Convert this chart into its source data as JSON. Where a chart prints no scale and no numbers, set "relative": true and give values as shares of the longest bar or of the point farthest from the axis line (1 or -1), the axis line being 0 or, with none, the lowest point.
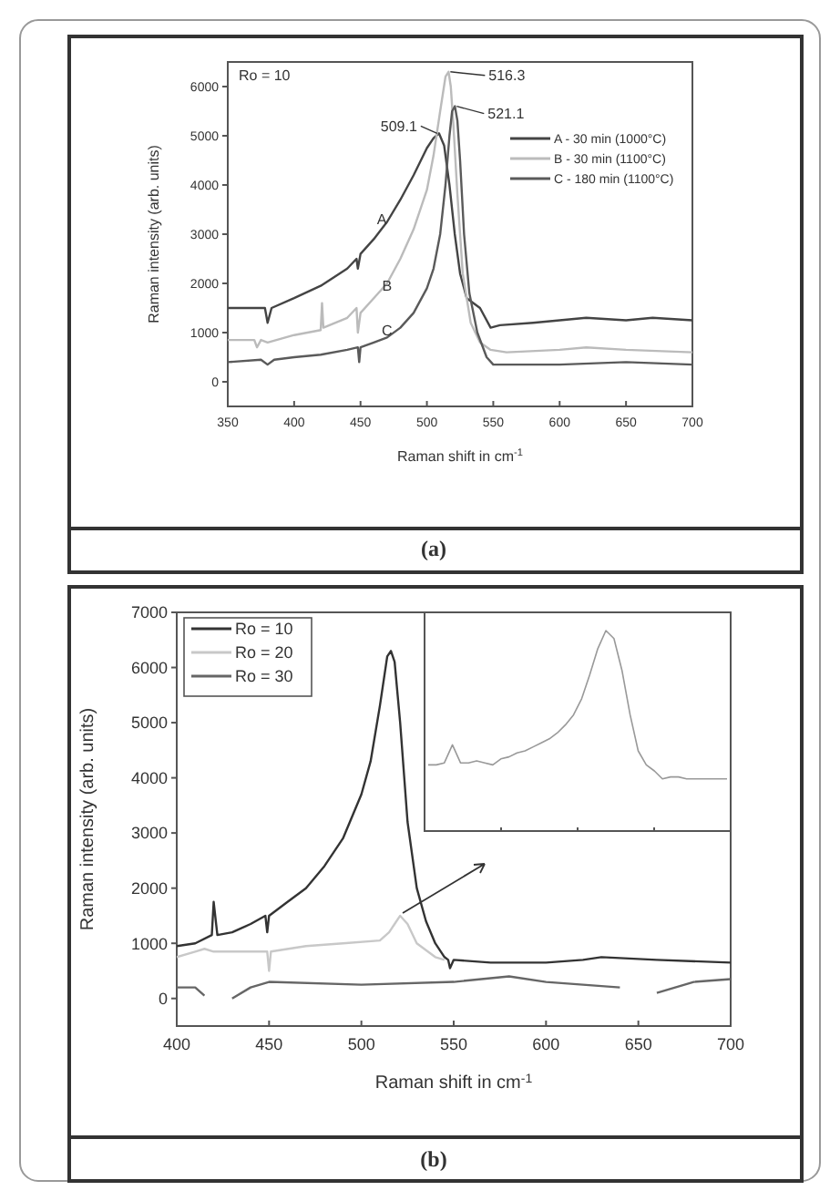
{
  "chart_data": [
    {
      "type": "line",
      "xlabel": "Raman shift in cm$^{-1}$",
      "ylabel": "Raman intensity (arb. units)",
      "xlim": [
        350,
        700
      ],
      "ylim": [
        -500,
        6500
      ],
      "xticks": [
        350,
        400,
        450,
        500,
        550,
        600,
        650,
        700
      ],
      "yticks": [
        0,
        1000,
        2000,
        3000,
        4000,
        5000,
        6000
      ],
      "legend": "top right",
      "annotations": [
        "Ro = 10",
        "(a)",
        {
          "text": "509.1",
          "x": 509.1,
          "y": 5050
        },
        {
          "text": "516.3",
          "x": 516.3,
          "y": 6300
        },
        {
          "text": "521.1",
          "x": 521.1,
          "y": 5600
        },
        {
          "text": "A",
          "x": 466,
          "y": 3300
        },
        {
          "text": "B",
          "x": 470,
          "y": 1950
        },
        {
          "text": "C",
          "x": 470,
          "y": 1050
        }
      ],
      "series": [
        {
          "name": "A - 30 min  (1000°C)",
          "color": "#444444",
          "x": [
            350,
            375,
            378,
            380,
            383,
            400,
            420,
            440,
            447,
            448,
            450,
            460,
            470,
            480,
            490,
            500,
            505,
            509.1,
            513,
            517,
            521,
            525,
            530,
            540,
            548,
            555,
            580,
            600,
            620,
            650,
            670,
            700
          ],
          "values": [
            1500,
            1500,
            1500,
            1200,
            1500,
            1700,
            1950,
            2300,
            2500,
            2300,
            2600,
            2900,
            3250,
            3700,
            4200,
            4750,
            4950,
            5050,
            4800,
            4000,
            3000,
            2200,
            1700,
            1500,
            1100,
            1150,
            1200,
            1250,
            1300,
            1250,
            1300,
            1250
          ]
        },
        {
          "name": "B - 30 min  (1100°C)",
          "color": "#bbbbbb",
          "x": [
            350,
            370,
            372,
            375,
            380,
            400,
            420,
            421,
            422,
            440,
            447,
            448,
            450,
            460,
            470,
            480,
            490,
            500,
            505,
            510,
            514,
            516.3,
            518,
            520,
            523,
            527,
            533,
            540,
            548,
            560,
            600,
            620,
            650,
            700
          ],
          "values": [
            850,
            850,
            700,
            850,
            800,
            950,
            1050,
            1600,
            1100,
            1300,
            1500,
            1000,
            1400,
            1700,
            2000,
            2500,
            3100,
            3900,
            4600,
            5500,
            6200,
            6300,
            6000,
            5200,
            3800,
            2200,
            1200,
            800,
            650,
            600,
            650,
            700,
            650,
            600
          ]
        },
        {
          "name": "C - 180 min (1100°C)",
          "color": "#5a5a5a",
          "x": [
            350,
            375,
            380,
            385,
            400,
            420,
            440,
            448,
            449,
            450,
            460,
            470,
            480,
            490,
            500,
            505,
            510,
            514,
            517,
            519,
            521.1,
            523,
            525,
            528,
            532,
            538,
            545,
            550,
            600,
            650,
            700
          ],
          "values": [
            400,
            450,
            350,
            450,
            500,
            550,
            650,
            700,
            400,
            700,
            800,
            900,
            1100,
            1400,
            1900,
            2300,
            3000,
            4000,
            5000,
            5500,
            5600,
            5300,
            4500,
            3000,
            1800,
            1000,
            500,
            350,
            350,
            400,
            350
          ]
        }
      ]
    },
    {
      "type": "line",
      "xlabel": "Raman shift in cm$^{-1}$",
      "ylabel": "Raman intensity (arb. units)",
      "xlim": [
        400,
        700
      ],
      "ylim": [
        -500,
        7000
      ],
      "xticks": [
        400,
        450,
        500,
        550,
        600,
        650,
        700
      ],
      "yticks": [
        0,
        1000,
        2000,
        3000,
        4000,
        5000,
        6000,
        7000
      ],
      "legend": "top left",
      "annotations": [
        "(b)"
      ],
      "series": [
        {
          "name": "Ro = 10",
          "color": "#333333",
          "x": [
            400,
            410,
            419,
            420,
            422,
            430,
            440,
            448,
            449,
            450,
            460,
            470,
            480,
            490,
            500,
            505,
            510,
            514,
            516,
            518,
            521,
            525,
            530,
            535,
            540,
            545,
            547,
            548,
            550,
            570,
            600,
            620,
            630,
            660,
            700
          ],
          "values": [
            950,
            1000,
            1150,
            1750,
            1150,
            1200,
            1350,
            1500,
            1200,
            1500,
            1750,
            2000,
            2400,
            2900,
            3700,
            4300,
            5300,
            6200,
            6300,
            6100,
            5000,
            3200,
            2000,
            1400,
            1000,
            750,
            700,
            550,
            700,
            650,
            650,
            700,
            750,
            700,
            650
          ]
        },
        {
          "name": "Ro = 20",
          "color": "#c8c8c8",
          "x": [
            400,
            410,
            415,
            420,
            440,
            449,
            450,
            451,
            470,
            490,
            510,
            515,
            518,
            521,
            525,
            530,
            540,
            545
          ],
          "values": [
            750,
            850,
            900,
            850,
            850,
            850,
            500,
            850,
            950,
            1000,
            1050,
            1200,
            1350,
            1500,
            1350,
            1000,
            750,
            700
          ]
        },
        {
          "name": "Ro = 30",
          "color": "#666666",
          "x": [
            400,
            410,
            415,
            418,
            427,
            430,
            440,
            450,
            500,
            550,
            580,
            600,
            640,
            645,
            655,
            660,
            680,
            700
          ],
          "values": [
            200,
            200,
            50,
            null,
            null,
            0,
            200,
            300,
            250,
            300,
            400,
            300,
            200,
            null,
            null,
            100,
            300,
            350
          ]
        }
      ]
    },
    {
      "type": "line",
      "relative": true,
      "categories": [
        null,
        null,
        null,
        null,
        null,
        null,
        null,
        null,
        null,
        null,
        null,
        null,
        null,
        null,
        null,
        null,
        null,
        null,
        null,
        null,
        null,
        null,
        null,
        null,
        null,
        null,
        null,
        null,
        null,
        null,
        null,
        null,
        null,
        null,
        null,
        null,
        null,
        null
      ],
      "series": [
        {
          "color": "#999999",
          "values": [
            0.33,
            0.33,
            0.34,
            0.43,
            0.34,
            0.34,
            0.35,
            0.34,
            0.33,
            0.36,
            0.37,
            0.39,
            0.4,
            0.42,
            0.44,
            0.46,
            0.49,
            0.53,
            0.58,
            0.66,
            0.78,
            0.91,
            1.0,
            0.96,
            0.8,
            0.58,
            0.4,
            0.33,
            0.3,
            0.26,
            0.27,
            0.27,
            0.26,
            0.26,
            0.26,
            0.26,
            0.26,
            0.26
          ]
        }
      ]
    }
  ]
}
